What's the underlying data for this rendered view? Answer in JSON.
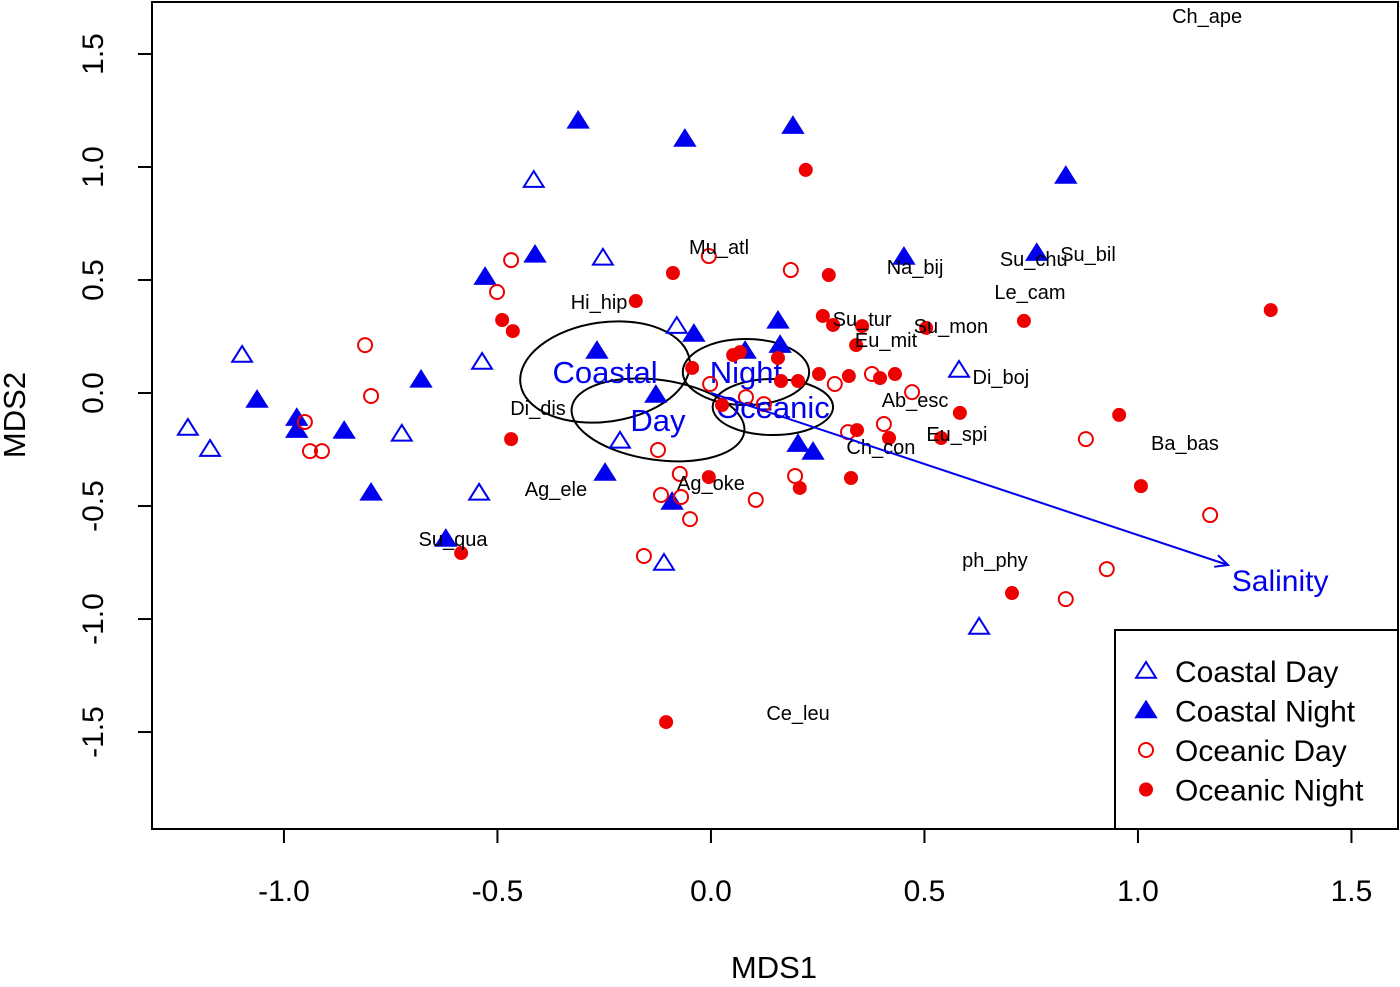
{
  "chart_data": {
    "type": "scatter",
    "title": "",
    "xlabel": "MDS1",
    "ylabel": "MDS2",
    "xlim": [
      -1.309,
      1.609
    ],
    "ylim": [
      -1.929,
      1.73
    ],
    "xticks": [
      -1.0,
      -0.5,
      0.0,
      0.5,
      1.0,
      1.5
    ],
    "xtick_labels": [
      "-1.0",
      "-0.5",
      "0.0",
      "0.5",
      "1.0",
      "1.5"
    ],
    "yticks": [
      -1.5,
      -1.0,
      -0.5,
      0.0,
      0.5,
      1.0,
      1.5
    ],
    "ytick_labels": [
      "-1.5",
      "-1.0",
      "-0.5",
      "0.0",
      "0.5",
      "1.0",
      "1.5"
    ],
    "grid": false,
    "legend_position": "bottom-right",
    "colors": {
      "coastal": "#0000ee",
      "oceanic": "#ee0000",
      "text": "#000000"
    },
    "series": [
      {
        "name": "Coastal Day",
        "marker": "open-triangle",
        "color": "#0000ee",
        "points": [
          [
            -1.225,
            -0.155
          ],
          [
            -1.173,
            -0.248
          ],
          [
            -1.098,
            0.168
          ],
          [
            -0.724,
            -0.181
          ],
          [
            -0.536,
            0.137
          ],
          [
            -0.543,
            -0.442
          ],
          [
            -0.415,
            0.942
          ],
          [
            -0.253,
            0.598
          ],
          [
            -0.08,
            0.296
          ],
          [
            -0.213,
            -0.212
          ],
          [
            -0.11,
            -0.752
          ],
          [
            0.581,
            0.102
          ],
          [
            0.628,
            -1.035
          ]
        ]
      },
      {
        "name": "Coastal Night",
        "marker": "filled-triangle",
        "color": "#0000ee",
        "points": [
          [
            -1.063,
            -0.031
          ],
          [
            -0.97,
            -0.111
          ],
          [
            -0.97,
            -0.164
          ],
          [
            -0.859,
            -0.168
          ],
          [
            -0.796,
            -0.442
          ],
          [
            -0.679,
            0.058
          ],
          [
            -0.529,
            0.513
          ],
          [
            -0.412,
            0.611
          ],
          [
            -0.311,
            1.204
          ],
          [
            -0.267,
            0.186
          ],
          [
            -0.248,
            -0.354
          ],
          [
            -0.621,
            -0.646
          ],
          [
            -0.129,
            -0.009
          ],
          [
            -0.061,
            1.124
          ],
          [
            -0.04,
            0.261
          ],
          [
            -0.091,
            -0.482
          ],
          [
            0.08,
            0.186
          ],
          [
            0.157,
            0.319
          ],
          [
            0.162,
            0.212
          ],
          [
            0.192,
            1.181
          ],
          [
            0.204,
            -0.226
          ],
          [
            0.239,
            -0.261
          ],
          [
            0.452,
            0.602
          ],
          [
            0.763,
            0.619
          ],
          [
            0.831,
            0.96
          ]
        ]
      },
      {
        "name": "Oceanic Day",
        "marker": "open-circle",
        "color": "#ee0000",
        "points": [
          [
            -0.951,
            -0.128
          ],
          [
            -0.939,
            -0.257
          ],
          [
            -0.911,
            -0.257
          ],
          [
            -0.81,
            0.212
          ],
          [
            -0.796,
            -0.013
          ],
          [
            -0.501,
            0.447
          ],
          [
            -0.468,
            0.588
          ],
          [
            -0.124,
            -0.252
          ],
          [
            -0.117,
            -0.451
          ],
          [
            -0.073,
            -0.358
          ],
          [
            -0.07,
            -0.46
          ],
          [
            -0.049,
            -0.558
          ],
          [
            -0.005,
            0.606
          ],
          [
            -0.002,
            0.04
          ],
          [
            0.082,
            -0.018
          ],
          [
            0.105,
            -0.473
          ],
          [
            0.124,
            -0.049
          ],
          [
            0.187,
            0.544
          ],
          [
            0.197,
            -0.367
          ],
          [
            0.29,
            0.04
          ],
          [
            0.321,
            -0.173
          ],
          [
            0.377,
            0.084
          ],
          [
            0.405,
            -0.137
          ],
          [
            0.471,
            0.004
          ],
          [
            0.878,
            -0.204
          ],
          [
            0.927,
            -0.779
          ],
          [
            0.831,
            -0.912
          ],
          [
            1.169,
            -0.54
          ],
          [
            -0.157,
            -0.721
          ]
        ]
      },
      {
        "name": "Oceanic Night",
        "marker": "filled-circle",
        "color": "#ee0000",
        "points": [
          [
            -0.585,
            -0.708
          ],
          [
            -0.489,
            0.323
          ],
          [
            -0.464,
            0.274
          ],
          [
            -0.468,
            -0.204
          ],
          [
            -0.176,
            0.407
          ],
          [
            -0.089,
            0.531
          ],
          [
            -0.105,
            -1.456
          ],
          [
            -0.044,
            0.111
          ],
          [
            -0.005,
            -0.372
          ],
          [
            0.026,
            -0.053
          ],
          [
            0.052,
            0.168
          ],
          [
            0.068,
            0.181
          ],
          [
            0.157,
            0.155
          ],
          [
            0.164,
            0.053
          ],
          [
            0.204,
            0.053
          ],
          [
            0.222,
            0.987
          ],
          [
            0.208,
            -0.42
          ],
          [
            0.253,
            0.084
          ],
          [
            0.262,
            0.341
          ],
          [
            0.276,
            0.522
          ],
          [
            0.286,
            0.301
          ],
          [
            0.34,
            0.212
          ],
          [
            0.323,
            0.075
          ],
          [
            0.342,
            -0.164
          ],
          [
            0.354,
            0.296
          ],
          [
            0.328,
            -0.376
          ],
          [
            0.396,
            0.066
          ],
          [
            0.417,
            -0.199
          ],
          [
            0.431,
            0.084
          ],
          [
            0.504,
            0.288
          ],
          [
            0.539,
            -0.199
          ],
          [
            0.583,
            -0.088
          ],
          [
            0.733,
            0.319
          ],
          [
            0.705,
            -0.885
          ],
          [
            0.956,
            -0.097
          ],
          [
            1.007,
            -0.412
          ],
          [
            1.311,
            0.367
          ]
        ]
      }
    ],
    "species_labels": [
      {
        "text": "Ch_ape",
        "x": 1.162,
        "y": 1.668
      },
      {
        "text": "Mu_atl",
        "x": 0.019,
        "y": 0.646
      },
      {
        "text": "Na_bij",
        "x": 0.478,
        "y": 0.558
      },
      {
        "text": "Su_chu",
        "x": 0.756,
        "y": 0.593
      },
      {
        "text": "Su_bil",
        "x": 0.883,
        "y": 0.615
      },
      {
        "text": "Le_cam",
        "x": 0.747,
        "y": 0.447
      },
      {
        "text": "Hi_hip",
        "x": -0.262,
        "y": 0.403
      },
      {
        "text": "Su_tur",
        "x": 0.354,
        "y": 0.327
      },
      {
        "text": "Su_mon",
        "x": 0.562,
        "y": 0.296
      },
      {
        "text": "Eu_mit",
        "x": 0.41,
        "y": 0.235
      },
      {
        "text": "Di_boj",
        "x": 0.679,
        "y": 0.071
      },
      {
        "text": "Ab_esc",
        "x": 0.478,
        "y": -0.031
      },
      {
        "text": "Di_dis",
        "x": -0.405,
        "y": -0.066
      },
      {
        "text": "Eu_spi",
        "x": 0.576,
        "y": -0.181
      },
      {
        "text": "Ch_con",
        "x": 0.398,
        "y": -0.239
      },
      {
        "text": "Ba_bas",
        "x": 1.11,
        "y": -0.221
      },
      {
        "text": "Ag_oke",
        "x": 0.0,
        "y": -0.398
      },
      {
        "text": "Ag_ele",
        "x": -0.363,
        "y": -0.425
      },
      {
        "text": "Su_qua",
        "x": -0.604,
        "y": -0.646
      },
      {
        "text": "ph_phy",
        "x": 0.665,
        "y": -0.739
      },
      {
        "text": "Ce_leu",
        "x": 0.204,
        "y": -1.416
      }
    ],
    "group_ellipses": [
      {
        "label": "Coastal",
        "cx": -0.248,
        "cy": 0.093,
        "rx": 0.2,
        "ry": 0.22,
        "angle": -8
      },
      {
        "label": "Night",
        "cx": 0.082,
        "cy": 0.093,
        "rx": 0.148,
        "ry": 0.146,
        "angle": 0
      },
      {
        "label": "Day",
        "cx": -0.124,
        "cy": -0.119,
        "rx": 0.204,
        "ry": 0.177,
        "angle": 8
      },
      {
        "label": "Oceanic",
        "cx": 0.145,
        "cy": -0.062,
        "rx": 0.141,
        "ry": 0.124,
        "angle": 0
      }
    ],
    "vector": {
      "label": "Salinity",
      "x": 1.211,
      "y": -0.761,
      "label_x": 1.333,
      "label_y": -0.827
    }
  }
}
